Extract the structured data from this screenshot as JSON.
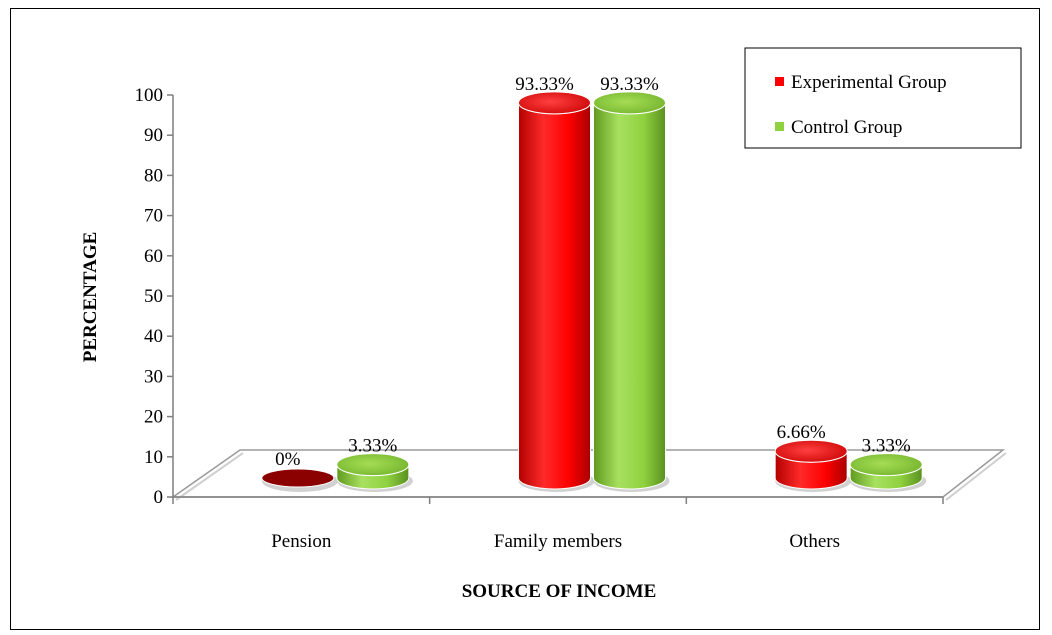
{
  "chart_data": {
    "type": "bar",
    "title": "",
    "xlabel": "SOURCE OF INCOME",
    "ylabel": "PERCENTAGE",
    "ylim": [
      0,
      100
    ],
    "yticks": [
      "0",
      "10",
      "20",
      "30",
      "40",
      "50",
      "60",
      "70",
      "80",
      "90",
      "100"
    ],
    "categories": [
      "Pension",
      "Family members",
      "Others"
    ],
    "series": [
      {
        "name": "Experimental Group",
        "values": [
          0,
          93.33,
          6.66
        ],
        "labels": [
          "0%",
          "93.33%",
          "6.66%"
        ],
        "color": "#ff0000"
      },
      {
        "name": "Control Group",
        "values": [
          3.33,
          93.33,
          3.33
        ],
        "labels": [
          "3.33%",
          "93.33%",
          "3.33%"
        ],
        "color": "#8fd13f"
      }
    ],
    "legend_position": "top-right",
    "style": "3d-cylinder"
  }
}
